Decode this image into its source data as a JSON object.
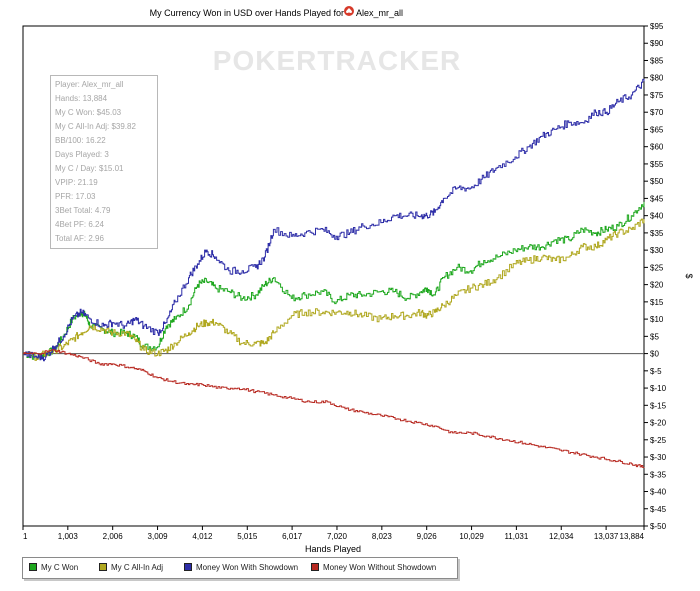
{
  "chart_data": {
    "type": "line",
    "title": "My Currency Won in USD over Hands Played for",
    "title_player": "Alex_mr_all",
    "watermark": "POKERTRACKER",
    "xlabel": "Hands Played",
    "ylabel": "$",
    "xlim": [
      1,
      13884
    ],
    "ylim": [
      -50,
      95
    ],
    "x_ticks": [
      "1",
      "1,003",
      "2,006",
      "3,009",
      "4,012",
      "5,015",
      "6,017",
      "7,020",
      "8,023",
      "9,026",
      "10,029",
      "11,031",
      "12,034",
      "13,037",
      "13,884"
    ],
    "x_tick_values": [
      1,
      1003,
      2006,
      3009,
      4012,
      5015,
      6017,
      7020,
      8023,
      9026,
      10029,
      11031,
      12034,
      13037,
      13884
    ],
    "y_ticks": [
      "$95",
      "$90",
      "$85",
      "$80",
      "$75",
      "$70",
      "$65",
      "$60",
      "$55",
      "$50",
      "$45",
      "$40",
      "$35",
      "$30",
      "$25",
      "$20",
      "$15",
      "$10",
      "$5",
      "$0",
      "$-5",
      "$-10",
      "$-15",
      "$-20",
      "$-25",
      "$-30",
      "$-35",
      "$-40",
      "$-45",
      "$-50"
    ],
    "y_tick_values": [
      95,
      90,
      85,
      80,
      75,
      70,
      65,
      60,
      55,
      50,
      45,
      40,
      35,
      30,
      25,
      20,
      15,
      10,
      5,
      0,
      -5,
      -10,
      -15,
      -20,
      -25,
      -30,
      -35,
      -40,
      -45,
      -50
    ],
    "grid": false,
    "legend_position": "bottom-left",
    "series": [
      {
        "name": "My C Won",
        "color": "#1fa81f",
        "x": [
          1,
          300,
          500,
          700,
          900,
          1100,
          1300,
          1400,
          1500,
          1800,
          2000,
          2300,
          2500,
          2700,
          3009,
          3200,
          3400,
          3700,
          3900,
          4100,
          4300,
          4600,
          4900,
          5200,
          5400,
          5600,
          6000,
          6300,
          6700,
          7000,
          7300,
          7600,
          8000,
          8300,
          8600,
          8900,
          9026,
          9200,
          9400,
          9700,
          10000,
          10300,
          10600,
          11000,
          11300,
          11600,
          11900,
          12200,
          12500,
          12800,
          13037,
          13300,
          13600,
          13884
        ],
        "y": [
          0,
          -1,
          0,
          1,
          5,
          10,
          12,
          11,
          8,
          7,
          6,
          6,
          5,
          2,
          2,
          8,
          10,
          14,
          20,
          21,
          19,
          18,
          16,
          17,
          20,
          22,
          16,
          17,
          18,
          15,
          17,
          17,
          18,
          18,
          16,
          18,
          19,
          17,
          22,
          25,
          24,
          27,
          28,
          30,
          31,
          31,
          33,
          33,
          36,
          35,
          36,
          37,
          40,
          44
        ]
      },
      {
        "name": "My C All-In Adj",
        "color": "#b0a820",
        "x": [
          1,
          300,
          500,
          700,
          900,
          1100,
          1300,
          1500,
          1800,
          2000,
          2300,
          2500,
          2700,
          3009,
          3200,
          3400,
          3700,
          3900,
          4100,
          4300,
          4600,
          4900,
          5200,
          5400,
          5600,
          6000,
          6300,
          6700,
          7000,
          7300,
          7600,
          8000,
          8300,
          8600,
          8900,
          9026,
          9200,
          9400,
          9700,
          10000,
          10300,
          10600,
          11000,
          11300,
          11600,
          11900,
          12200,
          12500,
          12800,
          13037,
          13300,
          13600,
          13884
        ],
        "y": [
          0,
          -1,
          0,
          1,
          2,
          4,
          6,
          8,
          7,
          6,
          6,
          4,
          1,
          0,
          1,
          3,
          6,
          8,
          9,
          9,
          6,
          3,
          3,
          3,
          6,
          11,
          12,
          12,
          12,
          12,
          11,
          10,
          11,
          11,
          12,
          11,
          12,
          14,
          17,
          19,
          20,
          22,
          26,
          27,
          28,
          27,
          28,
          31,
          31,
          33,
          35,
          36,
          39
        ]
      },
      {
        "name": "Money Won With Showdown",
        "color": "#2e2ea8",
        "x": [
          1,
          300,
          500,
          700,
          900,
          1100,
          1300,
          1500,
          1800,
          2000,
          2300,
          2500,
          2700,
          3009,
          3200,
          3400,
          3700,
          3900,
          4100,
          4300,
          4600,
          4900,
          5200,
          5400,
          5600,
          6000,
          6300,
          6700,
          7000,
          7300,
          7600,
          8000,
          8300,
          8600,
          8900,
          9026,
          9200,
          9400,
          9700,
          10000,
          10300,
          10600,
          11000,
          11300,
          11600,
          11900,
          12200,
          12500,
          12800,
          13037,
          13300,
          13600,
          13884
        ],
        "y": [
          0,
          -1,
          -1,
          2,
          5,
          10,
          12,
          10,
          8,
          9,
          8,
          10,
          8,
          6,
          9,
          15,
          22,
          26,
          30,
          28,
          24,
          24,
          25,
          28,
          36,
          34,
          35,
          36,
          34,
          35,
          37,
          38,
          40,
          40,
          40,
          40,
          41,
          45,
          48,
          48,
          51,
          54,
          57,
          60,
          63,
          65,
          67,
          67,
          70,
          70,
          73,
          75,
          79
        ]
      },
      {
        "name": "Money Won Without Showdown",
        "color": "#b82a22",
        "x": [
          1,
          300,
          700,
          1000,
          1300,
          1700,
          2000,
          2400,
          2700,
          3000,
          3300,
          3700,
          4000,
          4400,
          4800,
          5200,
          5600,
          6000,
          6400,
          6800,
          7200,
          7600,
          8000,
          8400,
          8800,
          9200,
          9600,
          10000,
          10400,
          10800,
          11200,
          11600,
          12000,
          12400,
          12800,
          13200,
          13600,
          13884
        ],
        "y": [
          0,
          0,
          1,
          0,
          -1,
          -3,
          -3,
          -4,
          -5,
          -7,
          -8,
          -9,
          -9,
          -10,
          -10,
          -11,
          -12,
          -13,
          -14,
          -14,
          -16,
          -17,
          -18,
          -19,
          -20,
          -21,
          -23,
          -23,
          -24,
          -25,
          -26,
          -27,
          -28,
          -29,
          -30,
          -31,
          -32,
          -33
        ]
      }
    ]
  },
  "stats": [
    "Player: Alex_mr_all",
    "Hands: 13,884",
    "My C Won: $45.03",
    "My C All-In Adj: $39.82",
    "BB/100: 16.22",
    "Days Played: 3",
    "My C / Day: $15.01",
    "VPIP: 21.19",
    "PFR: 17.03",
    "3Bet Total: 4.79",
    "4Bet PF: 6.24",
    "Total AF: 2.96"
  ],
  "legend": [
    "My C Won",
    "My C All-In Adj",
    "Money Won With Showdown",
    "Money Won Without Showdown"
  ]
}
